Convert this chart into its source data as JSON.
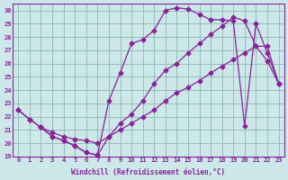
{
  "xlabel": "Windchill (Refroidissement éolien,°C)",
  "bg_color": "#cce8e8",
  "line_color": "#882299",
  "grid_color": "#99bbbb",
  "xlim": [
    -0.5,
    23.5
  ],
  "ylim": [
    19.0,
    30.5
  ],
  "xticks": [
    0,
    1,
    2,
    3,
    4,
    5,
    6,
    7,
    8,
    9,
    10,
    11,
    12,
    13,
    14,
    15,
    16,
    17,
    18,
    19,
    20,
    21,
    22,
    23
  ],
  "yticks": [
    19,
    20,
    21,
    22,
    23,
    24,
    25,
    26,
    27,
    28,
    29,
    30
  ],
  "line1_x": [
    0,
    1,
    2,
    3,
    4,
    5,
    6,
    7,
    8,
    9,
    10,
    11,
    12,
    13,
    14,
    15,
    16,
    17,
    18,
    19,
    20,
    21,
    22,
    23
  ],
  "line1_y": [
    22.5,
    21.8,
    21.2,
    20.5,
    20.2,
    19.8,
    19.3,
    19.1,
    23.2,
    25.3,
    27.5,
    27.8,
    28.5,
    30.0,
    30.2,
    30.1,
    29.7,
    29.3,
    29.3,
    29.2,
    21.3,
    29.0,
    26.8,
    24.5
  ],
  "line2_x": [
    0,
    1,
    2,
    3,
    4,
    5,
    6,
    7,
    8,
    9,
    10,
    11,
    12,
    13,
    14,
    15,
    16,
    17,
    18,
    19,
    20,
    21,
    22,
    23
  ],
  "line2_y": [
    22.5,
    21.8,
    21.2,
    20.5,
    20.2,
    19.8,
    19.3,
    19.1,
    20.5,
    21.5,
    22.2,
    23.2,
    24.5,
    25.5,
    26.0,
    26.8,
    27.5,
    28.2,
    28.8,
    29.5,
    29.2,
    27.3,
    26.2,
    24.5
  ],
  "line3_x": [
    2,
    3,
    4,
    5,
    6,
    7,
    8,
    9,
    10,
    11,
    12,
    13,
    14,
    15,
    16,
    17,
    18,
    19,
    20,
    21,
    22,
    23
  ],
  "line3_y": [
    21.2,
    20.8,
    20.5,
    20.3,
    20.2,
    20.0,
    20.5,
    21.0,
    21.5,
    22.0,
    22.5,
    23.2,
    23.8,
    24.2,
    24.7,
    25.3,
    25.8,
    26.3,
    26.8,
    27.3,
    27.3,
    24.5
  ]
}
